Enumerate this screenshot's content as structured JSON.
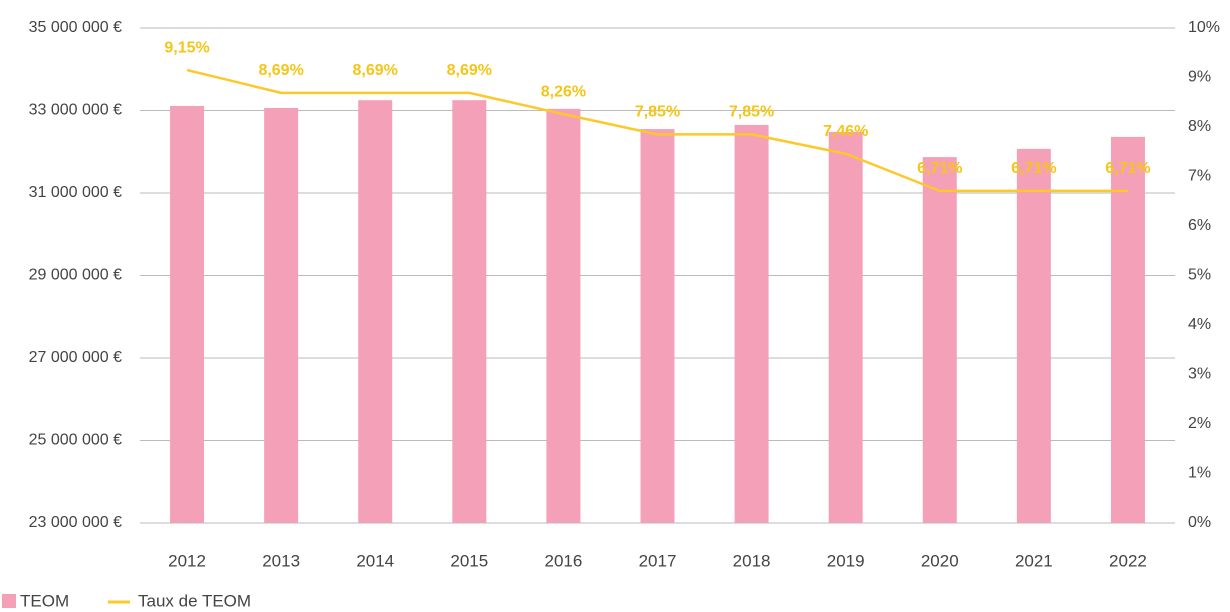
{
  "chart_data": {
    "type": "bar-line",
    "categories": [
      "2012",
      "2013",
      "2014",
      "2015",
      "2016",
      "2017",
      "2018",
      "2019",
      "2020",
      "2021",
      "2022"
    ],
    "series": [
      {
        "name": "TEOM",
        "color": "#f4a0b8",
        "values": [
          33110000,
          33060000,
          33250000,
          33250000,
          33040000,
          32550000,
          32650000,
          32480000,
          31870000,
          32070000,
          32360000
        ]
      },
      {
        "name": "Taux de TEOM",
        "color": "#fcc82a",
        "axis": "y2",
        "values": [
          9.15,
          8.69,
          8.69,
          8.69,
          8.26,
          7.85,
          7.85,
          7.46,
          6.71,
          6.71,
          6.71
        ],
        "value_labels": [
          "9,15%",
          "8,69%",
          "8,69%",
          "8,69%",
          "8,26%",
          "7,85%",
          "7,85%",
          "7,46%",
          "6,71%",
          "6,71%",
          "6,71%"
        ]
      }
    ],
    "ylim": [
      23000000,
      35000000
    ],
    "yticks": [
      {
        "value": 23000000,
        "label": "23 000 000 €"
      },
      {
        "value": 25000000,
        "label": "25 000 000 €"
      },
      {
        "value": 27000000,
        "label": "27 000 000 €"
      },
      {
        "value": 29000000,
        "label": "29 000 000 €"
      },
      {
        "value": 31000000,
        "label": "31 000 000 €"
      },
      {
        "value": 33000000,
        "label": "33 000 000 €"
      },
      {
        "value": 35000000,
        "label": "35 000 000 €"
      }
    ],
    "y2lim": [
      0,
      10
    ],
    "y2ticks": [
      {
        "value": 0,
        "label": "0%"
      },
      {
        "value": 1,
        "label": "1%"
      },
      {
        "value": 2,
        "label": "2%"
      },
      {
        "value": 3,
        "label": "3%"
      },
      {
        "value": 4,
        "label": "4%"
      },
      {
        "value": 5,
        "label": "5%"
      },
      {
        "value": 6,
        "label": "6%"
      },
      {
        "value": 7,
        "label": "7%"
      },
      {
        "value": 8,
        "label": "8%"
      },
      {
        "value": 9,
        "label": "9%"
      },
      {
        "value": 10,
        "label": "10%"
      }
    ],
    "grid": true
  }
}
